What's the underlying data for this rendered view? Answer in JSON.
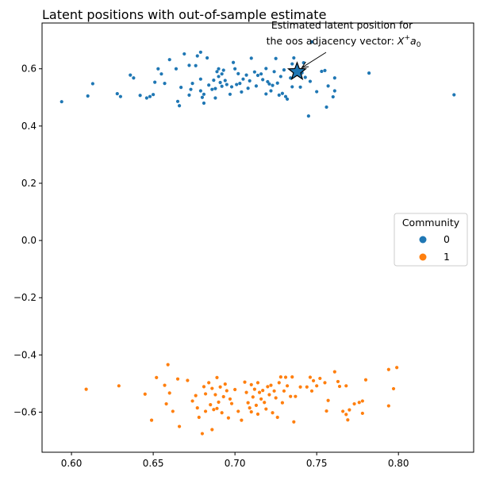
{
  "chart_data": {
    "type": "scatter",
    "title": "Latent positions with out-of-sample estimate",
    "xlabel": "",
    "ylabel": "",
    "xlim": [
      0.582,
      0.846
    ],
    "ylim": [
      -0.74,
      0.76
    ],
    "x_ticks": [
      0.6,
      0.65,
      0.7,
      0.75,
      0.8
    ],
    "x_tick_labels": [
      "0.60",
      "0.65",
      "0.70",
      "0.75",
      "0.80"
    ],
    "y_ticks": [
      -0.6,
      -0.4,
      -0.2,
      0.0,
      0.2,
      0.4,
      0.6
    ],
    "y_tick_labels": [
      "−0.6",
      "−0.4",
      "−0.2",
      "0.0",
      "0.2",
      "0.4",
      "0.6"
    ],
    "grid": false,
    "legend": {
      "title": "Community",
      "placement": "center-right",
      "entries": [
        {
          "label": "0",
          "color": "#1f77b4"
        },
        {
          "label": "1",
          "color": "#ff7f0e"
        }
      ]
    },
    "annotation": {
      "line1": "Estimated latent position for",
      "line2_prefix": "the oos adjacency vector: ",
      "line2_math_X": "X",
      "line2_math_plus": "+",
      "line2_math_a": "a",
      "line2_math_sub": "0",
      "target": {
        "x": 0.738,
        "y": 0.59
      }
    },
    "oos_estimate": {
      "x": 0.738,
      "y": 0.59,
      "marker": "star",
      "color": "#1f77b4"
    },
    "series": [
      {
        "name": "0",
        "color": "#1f77b4",
        "points": [
          [
            0.594,
            0.485
          ],
          [
            0.61,
            0.505
          ],
          [
            0.613,
            0.548
          ],
          [
            0.628,
            0.513
          ],
          [
            0.63,
            0.503
          ],
          [
            0.636,
            0.578
          ],
          [
            0.638,
            0.568
          ],
          [
            0.642,
            0.507
          ],
          [
            0.646,
            0.498
          ],
          [
            0.648,
            0.503
          ],
          [
            0.65,
            0.51
          ],
          [
            0.651,
            0.553
          ],
          [
            0.653,
            0.6
          ],
          [
            0.655,
            0.582
          ],
          [
            0.657,
            0.549
          ],
          [
            0.66,
            0.632
          ],
          [
            0.664,
            0.6
          ],
          [
            0.665,
            0.486
          ],
          [
            0.666,
            0.471
          ],
          [
            0.667,
            0.535
          ],
          [
            0.669,
            0.652
          ],
          [
            0.672,
            0.612
          ],
          [
            0.672,
            0.508
          ],
          [
            0.673,
            0.528
          ],
          [
            0.674,
            0.549
          ],
          [
            0.676,
            0.611
          ],
          [
            0.677,
            0.645
          ],
          [
            0.679,
            0.658
          ],
          [
            0.679,
            0.564
          ],
          [
            0.679,
            0.523
          ],
          [
            0.68,
            0.5
          ],
          [
            0.681,
            0.511
          ],
          [
            0.681,
            0.48
          ],
          [
            0.683,
            0.638
          ],
          [
            0.684,
            0.543
          ],
          [
            0.686,
            0.528
          ],
          [
            0.687,
            0.56
          ],
          [
            0.688,
            0.531
          ],
          [
            0.688,
            0.498
          ],
          [
            0.689,
            0.59
          ],
          [
            0.69,
            0.6
          ],
          [
            0.69,
            0.573
          ],
          [
            0.691,
            0.552
          ],
          [
            0.692,
            0.582
          ],
          [
            0.692,
            0.539
          ],
          [
            0.693,
            0.595
          ],
          [
            0.694,
            0.559
          ],
          [
            0.695,
            0.545
          ],
          [
            0.697,
            0.511
          ],
          [
            0.698,
            0.537
          ],
          [
            0.699,
            0.622
          ],
          [
            0.7,
            0.6
          ],
          [
            0.701,
            0.545
          ],
          [
            0.702,
            0.583
          ],
          [
            0.703,
            0.549
          ],
          [
            0.704,
            0.519
          ],
          [
            0.705,
            0.564
          ],
          [
            0.707,
            0.578
          ],
          [
            0.708,
            0.532
          ],
          [
            0.709,
            0.558
          ],
          [
            0.71,
            0.637
          ],
          [
            0.712,
            0.589
          ],
          [
            0.713,
            0.54
          ],
          [
            0.714,
            0.577
          ],
          [
            0.716,
            0.582
          ],
          [
            0.717,
            0.562
          ],
          [
            0.719,
            0.512
          ],
          [
            0.719,
            0.601
          ],
          [
            0.72,
            0.555
          ],
          [
            0.721,
            0.547
          ],
          [
            0.722,
            0.523
          ],
          [
            0.723,
            0.542
          ],
          [
            0.724,
            0.59
          ],
          [
            0.725,
            0.636
          ],
          [
            0.726,
            0.55
          ],
          [
            0.727,
            0.508
          ],
          [
            0.728,
            0.573
          ],
          [
            0.729,
            0.514
          ],
          [
            0.73,
            0.596
          ],
          [
            0.731,
            0.503
          ],
          [
            0.732,
            0.494
          ],
          [
            0.734,
            0.568
          ],
          [
            0.735,
            0.537
          ],
          [
            0.735,
            0.617
          ],
          [
            0.736,
            0.638
          ],
          [
            0.74,
            0.536
          ],
          [
            0.741,
            0.586
          ],
          [
            0.742,
            0.621
          ],
          [
            0.743,
            0.57
          ],
          [
            0.745,
            0.435
          ],
          [
            0.746,
            0.556
          ],
          [
            0.747,
            0.694
          ],
          [
            0.75,
            0.52
          ],
          [
            0.753,
            0.591
          ],
          [
            0.755,
            0.594
          ],
          [
            0.756,
            0.466
          ],
          [
            0.757,
            0.54
          ],
          [
            0.76,
            0.502
          ],
          [
            0.761,
            0.523
          ],
          [
            0.761,
            0.568
          ],
          [
            0.782,
            0.585
          ],
          [
            0.834,
            0.509
          ]
        ]
      },
      {
        "name": "1",
        "color": "#ff7f0e",
        "points": [
          [
            0.609,
            -0.52
          ],
          [
            0.629,
            -0.508
          ],
          [
            0.645,
            -0.537
          ],
          [
            0.649,
            -0.628
          ],
          [
            0.652,
            -0.479
          ],
          [
            0.657,
            -0.506
          ],
          [
            0.658,
            -0.571
          ],
          [
            0.659,
            -0.434
          ],
          [
            0.66,
            -0.533
          ],
          [
            0.662,
            -0.597
          ],
          [
            0.665,
            -0.484
          ],
          [
            0.666,
            -0.65
          ],
          [
            0.671,
            -0.489
          ],
          [
            0.674,
            -0.561
          ],
          [
            0.676,
            -0.542
          ],
          [
            0.677,
            -0.585
          ],
          [
            0.678,
            -0.618
          ],
          [
            0.68,
            -0.675
          ],
          [
            0.681,
            -0.511
          ],
          [
            0.682,
            -0.536
          ],
          [
            0.682,
            -0.597
          ],
          [
            0.684,
            -0.497
          ],
          [
            0.685,
            -0.574
          ],
          [
            0.686,
            -0.517
          ],
          [
            0.686,
            -0.661
          ],
          [
            0.687,
            -0.591
          ],
          [
            0.688,
            -0.539
          ],
          [
            0.689,
            -0.479
          ],
          [
            0.689,
            -0.587
          ],
          [
            0.69,
            -0.565
          ],
          [
            0.691,
            -0.512
          ],
          [
            0.692,
            -0.602
          ],
          [
            0.693,
            -0.546
          ],
          [
            0.694,
            -0.502
          ],
          [
            0.695,
            -0.525
          ],
          [
            0.696,
            -0.62
          ],
          [
            0.697,
            -0.554
          ],
          [
            0.698,
            -0.57
          ],
          [
            0.7,
            -0.521
          ],
          [
            0.702,
            -0.597
          ],
          [
            0.704,
            -0.628
          ],
          [
            0.706,
            -0.495
          ],
          [
            0.707,
            -0.531
          ],
          [
            0.708,
            -0.567
          ],
          [
            0.709,
            -0.585
          ],
          [
            0.71,
            -0.504
          ],
          [
            0.71,
            -0.599
          ],
          [
            0.711,
            -0.547
          ],
          [
            0.712,
            -0.52
          ],
          [
            0.713,
            -0.576
          ],
          [
            0.714,
            -0.497
          ],
          [
            0.714,
            -0.607
          ],
          [
            0.715,
            -0.531
          ],
          [
            0.716,
            -0.554
          ],
          [
            0.717,
            -0.524
          ],
          [
            0.718,
            -0.566
          ],
          [
            0.719,
            -0.589
          ],
          [
            0.72,
            -0.511
          ],
          [
            0.721,
            -0.539
          ],
          [
            0.722,
            -0.506
          ],
          [
            0.723,
            -0.602
          ],
          [
            0.724,
            -0.526
          ],
          [
            0.725,
            -0.55
          ],
          [
            0.726,
            -0.618
          ],
          [
            0.727,
            -0.497
          ],
          [
            0.728,
            -0.477
          ],
          [
            0.729,
            -0.567
          ],
          [
            0.73,
            -0.526
          ],
          [
            0.731,
            -0.478
          ],
          [
            0.732,
            -0.508
          ],
          [
            0.734,
            -0.545
          ],
          [
            0.735,
            -0.477
          ],
          [
            0.736,
            -0.634
          ],
          [
            0.737,
            -0.545
          ],
          [
            0.74,
            -0.512
          ],
          [
            0.744,
            -0.512
          ],
          [
            0.746,
            -0.478
          ],
          [
            0.747,
            -0.526
          ],
          [
            0.748,
            -0.49
          ],
          [
            0.75,
            -0.508
          ],
          [
            0.752,
            -0.482
          ],
          [
            0.755,
            -0.497
          ],
          [
            0.756,
            -0.596
          ],
          [
            0.757,
            -0.559
          ],
          [
            0.761,
            -0.459
          ],
          [
            0.763,
            -0.493
          ],
          [
            0.764,
            -0.51
          ],
          [
            0.766,
            -0.597
          ],
          [
            0.768,
            -0.508
          ],
          [
            0.768,
            -0.608
          ],
          [
            0.769,
            -0.627
          ],
          [
            0.77,
            -0.592
          ],
          [
            0.773,
            -0.571
          ],
          [
            0.776,
            -0.566
          ],
          [
            0.778,
            -0.561
          ],
          [
            0.778,
            -0.604
          ],
          [
            0.78,
            -0.487
          ],
          [
            0.794,
            -0.451
          ],
          [
            0.794,
            -0.578
          ],
          [
            0.797,
            -0.518
          ],
          [
            0.799,
            -0.444
          ]
        ]
      }
    ]
  }
}
